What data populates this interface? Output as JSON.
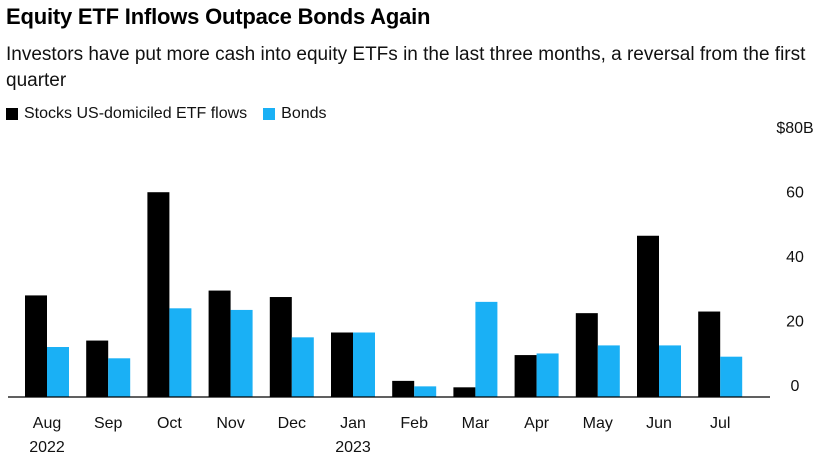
{
  "chart_data": {
    "type": "bar",
    "title": "Equity ETF Inflows Outpace Bonds Again",
    "subtitle": "Investors have put more cash into equity ETFs in the last three months, a reversal from the first quarter",
    "categories": [
      "Aug",
      "Sep",
      "Oct",
      "Nov",
      "Dec",
      "Jan",
      "Feb",
      "Mar",
      "Apr",
      "May",
      "Jun",
      "Jul"
    ],
    "category_sublabels": [
      "2022",
      "",
      "",
      "",
      "",
      "2023",
      "",
      "",
      "",
      "",
      "",
      ""
    ],
    "series": [
      {
        "name": "Stocks US-domiciled ETF flows",
        "color": "#000000",
        "values": [
          31.5,
          17.5,
          63.5,
          33,
          31,
          20,
          5,
          3,
          13,
          26,
          50,
          26.5
        ]
      },
      {
        "name": "Bonds",
        "color": "#1ab0f5",
        "values": [
          15.5,
          12,
          27.5,
          27,
          18.5,
          20,
          3.3,
          29.5,
          13.5,
          16,
          16,
          12.5
        ]
      }
    ],
    "yaxis": {
      "ticks": [
        0,
        20,
        40,
        60,
        80
      ],
      "tick_labels": [
        "0",
        "20",
        "40",
        "60",
        "$80B"
      ],
      "ylim": [
        0,
        80
      ]
    },
    "grid": false,
    "legend_position": "top-left"
  }
}
